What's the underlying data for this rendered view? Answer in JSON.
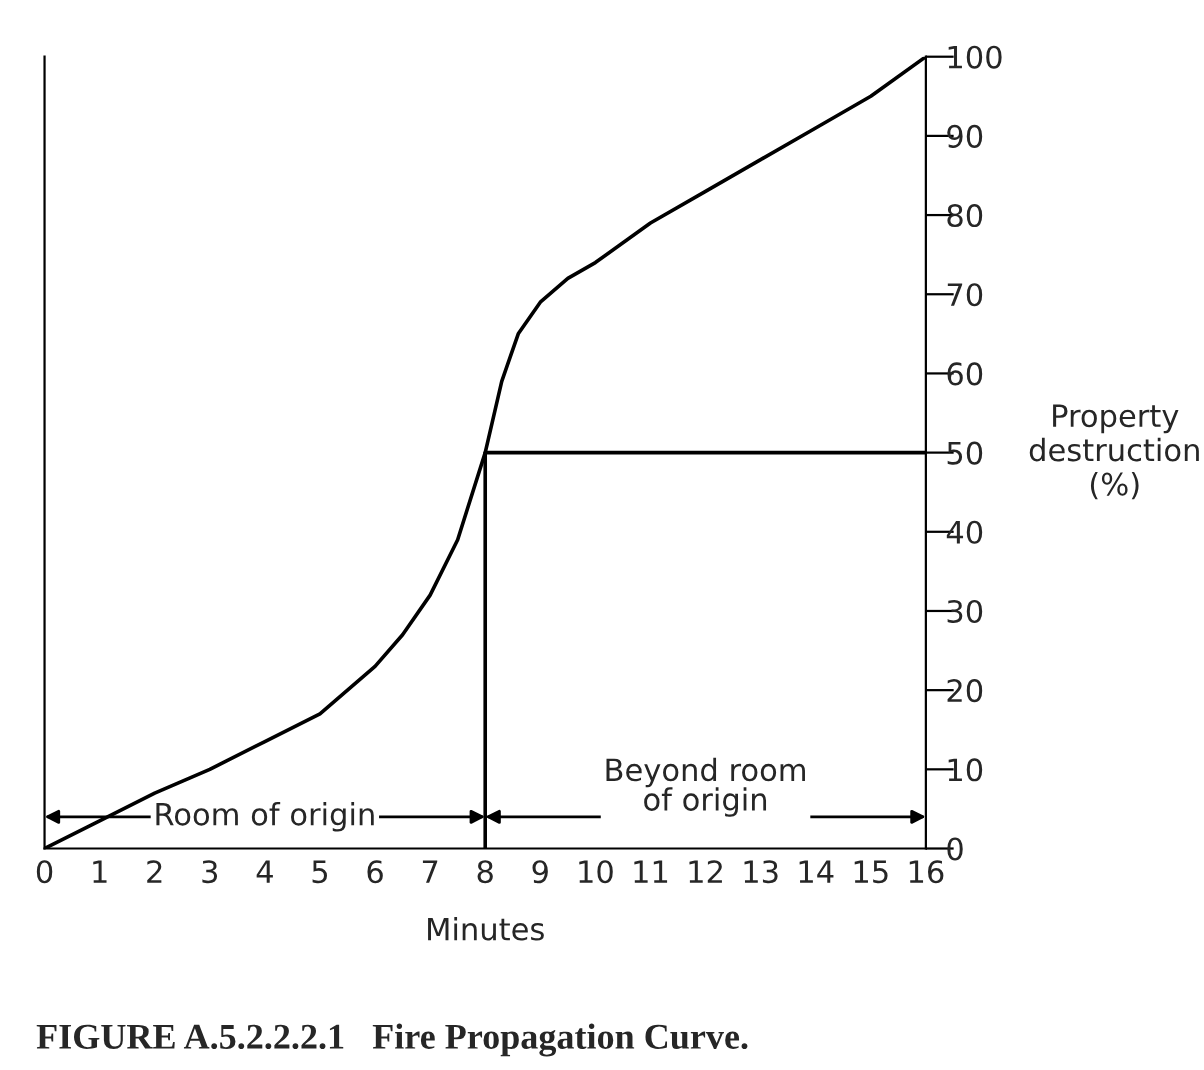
{
  "chart_data": {
    "type": "line",
    "xlabel": "Minutes",
    "ylabel": "Property\ndestruction\n(%)",
    "xlim": [
      0,
      16
    ],
    "ylim": [
      0,
      100
    ],
    "xticks": [
      0,
      1,
      2,
      3,
      4,
      5,
      6,
      7,
      8,
      9,
      10,
      11,
      12,
      13,
      14,
      15,
      16
    ],
    "yticks": [
      0,
      10,
      20,
      30,
      40,
      50,
      60,
      70,
      80,
      90,
      100
    ],
    "grid": false,
    "legend": false,
    "marker": "none",
    "line_style": "solid",
    "series": [
      {
        "color": "#000000",
        "x": [
          0,
          1,
          2,
          3,
          4,
          5,
          6,
          6.5,
          7,
          7.5,
          8,
          8.3,
          8.6,
          9,
          9.5,
          10,
          11,
          12,
          13,
          14,
          15,
          16
        ],
        "values": [
          0,
          3.5,
          7,
          10,
          13.5,
          17,
          23,
          27,
          32,
          39,
          50,
          59,
          65,
          69,
          72,
          74,
          79,
          83,
          87,
          91,
          95,
          100
        ]
      },
      {
        "color": "#000000",
        "x": [
          8,
          8,
          16
        ],
        "values": [
          0,
          50,
          50
        ]
      }
    ],
    "annotations": [
      "Room of origin",
      "Beyond room\nof origin",
      "FIGURE A.5.2.2.2.1   Fire Propagation Curve."
    ]
  }
}
